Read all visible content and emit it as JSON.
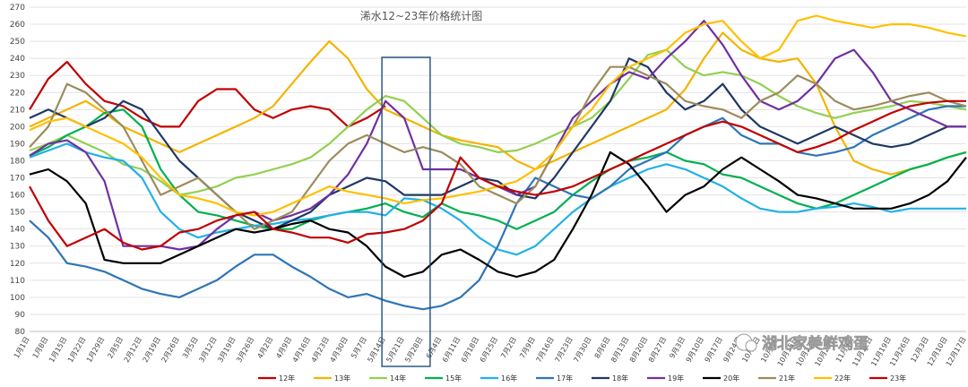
{
  "chart_data": {
    "type": "line",
    "title": "浠水12~23年价格统计图",
    "ylim": [
      80,
      270
    ],
    "ystep": 10,
    "grid": true,
    "legend_position": "bottom",
    "highlight_range": [
      "5月14日",
      "5月28日"
    ],
    "categories": [
      "1月1日",
      "1月8日",
      "1月15日",
      "1月22日",
      "1月29日",
      "2月5日",
      "2月12日",
      "2月19日",
      "2月26日",
      "3月5日",
      "3月12日",
      "3月19日",
      "3月26日",
      "4月2日",
      "4月9日",
      "4月16日",
      "4月23日",
      "4月30日",
      "5月7日",
      "5月14日",
      "5月21日",
      "5月28日",
      "6月4日",
      "6月11日",
      "6月18日",
      "6月25日",
      "7月2日",
      "7月9日",
      "7月16日",
      "7月23日",
      "7月30日",
      "8月6日",
      "8月13日",
      "8月20日",
      "8月27日",
      "9月3日",
      "9月10日",
      "9月17日",
      "9月24日",
      "10月1日",
      "10月8日",
      "10月15日",
      "10月22日",
      "10月29日",
      "11月5日",
      "11月12日",
      "11月19日",
      "11月26日",
      "12月3日",
      "12月10日",
      "12月17日"
    ],
    "series": [
      {
        "name": "12年",
        "color": "#c00000",
        "values": [
          210,
          228,
          238,
          225,
          215,
          212,
          205,
          200,
          200,
          215,
          222,
          222,
          210,
          205,
          210,
          212,
          210,
          200,
          205,
          212,
          null,
          null,
          null,
          null,
          null,
          null,
          null,
          null,
          null,
          null,
          null,
          null,
          null,
          null,
          null,
          null,
          null,
          null,
          null,
          null,
          null,
          null,
          null,
          null,
          null,
          null,
          null,
          null,
          null,
          null,
          null
        ]
      },
      {
        "name": "13年",
        "color": "#f4b400",
        "values": [
          200,
          205,
          210,
          215,
          208,
          200,
          195,
          190,
          185,
          190,
          195,
          200,
          205,
          212,
          225,
          238,
          250,
          240,
          222,
          210,
          205,
          200,
          195,
          192,
          190,
          188,
          180,
          175,
          180,
          185,
          190,
          195,
          200,
          205,
          210,
          222,
          240,
          255,
          245,
          240,
          238,
          240,
          225,
          200,
          180,
          175,
          172,
          175,
          178,
          182,
          185
        ]
      },
      {
        "name": "14年",
        "color": "#92d050",
        "values": [
          186,
          190,
          195,
          190,
          185,
          178,
          175,
          168,
          160,
          162,
          165,
          170,
          172,
          175,
          178,
          182,
          190,
          200,
          210,
          218,
          215,
          205,
          195,
          190,
          188,
          185,
          186,
          190,
          195,
          200,
          205,
          215,
          228,
          242,
          245,
          235,
          230,
          232,
          230,
          225,
          218,
          212,
          208,
          205,
          208,
          210,
          212,
          215,
          214,
          212,
          210
        ]
      },
      {
        "name": "15年",
        "color": "#00b050",
        "values": [
          183,
          188,
          195,
          200,
          208,
          210,
          200,
          175,
          160,
          150,
          148,
          145,
          142,
          140,
          140,
          145,
          148,
          150,
          152,
          155,
          150,
          147,
          155,
          150,
          148,
          145,
          140,
          145,
          150,
          160,
          168,
          175,
          180,
          182,
          185,
          180,
          178,
          172,
          170,
          165,
          160,
          155,
          152,
          155,
          160,
          165,
          170,
          175,
          178,
          182,
          185
        ]
      },
      {
        "name": "16年",
        "color": "#21b1e6",
        "values": [
          182,
          186,
          190,
          185,
          182,
          180,
          170,
          150,
          140,
          135,
          138,
          140,
          142,
          143,
          145,
          146,
          148,
          150,
          150,
          148,
          158,
          157,
          152,
          145,
          135,
          128,
          125,
          130,
          140,
          150,
          158,
          165,
          170,
          175,
          178,
          175,
          170,
          165,
          158,
          152,
          150,
          150,
          152,
          153,
          155,
          153,
          150,
          152,
          152,
          152,
          152
        ]
      },
      {
        "name": "17年",
        "color": "#2e75b6",
        "values": [
          145,
          135,
          120,
          118,
          115,
          110,
          105,
          102,
          100,
          105,
          110,
          118,
          125,
          125,
          118,
          112,
          105,
          100,
          102,
          98,
          95,
          93,
          95,
          100,
          110,
          130,
          155,
          170,
          165,
          160,
          158,
          165,
          175,
          180,
          185,
          195,
          200,
          205,
          195,
          190,
          190,
          185,
          183,
          185,
          188,
          195,
          200,
          205,
          210,
          212,
          212
        ]
      },
      {
        "name": "18年",
        "color": "#1f3864",
        "values": [
          205,
          210,
          205,
          200,
          205,
          215,
          210,
          195,
          180,
          170,
          160,
          150,
          145,
          140,
          145,
          150,
          160,
          165,
          170,
          168,
          160,
          160,
          160,
          165,
          170,
          168,
          160,
          158,
          170,
          185,
          200,
          215,
          240,
          235,
          220,
          210,
          215,
          225,
          210,
          200,
          195,
          190,
          195,
          200,
          195,
          190,
          188,
          190,
          195,
          200,
          200
        ]
      },
      {
        "name": "19年",
        "color": "#7030a0",
        "values": [
          183,
          190,
          192,
          185,
          168,
          130,
          130,
          130,
          128,
          130,
          140,
          148,
          150,
          145,
          148,
          152,
          160,
          172,
          190,
          215,
          205,
          175,
          175,
          175,
          170,
          165,
          160,
          165,
          185,
          205,
          215,
          225,
          232,
          228,
          240,
          250,
          262,
          248,
          230,
          215,
          210,
          215,
          225,
          240,
          245,
          232,
          215,
          210,
          205,
          200,
          200
        ]
      },
      {
        "name": "20年",
        "color": "#000000",
        "values": [
          172,
          175,
          168,
          155,
          122,
          120,
          120,
          120,
          125,
          130,
          135,
          140,
          138,
          140,
          143,
          145,
          140,
          138,
          130,
          118,
          112,
          115,
          125,
          128,
          122,
          115,
          112,
          115,
          122,
          140,
          160,
          185,
          178,
          165,
          150,
          160,
          165,
          175,
          182,
          175,
          168,
          160,
          158,
          155,
          152,
          152,
          152,
          155,
          160,
          168,
          182
        ]
      },
      {
        "name": "21年",
        "color": "#9c8c5c",
        "values": [
          188,
          200,
          225,
          220,
          210,
          200,
          180,
          160,
          165,
          170,
          160,
          150,
          140,
          145,
          150,
          165,
          180,
          190,
          195,
          190,
          185,
          188,
          185,
          178,
          165,
          160,
          155,
          165,
          185,
          200,
          220,
          235,
          235,
          230,
          225,
          215,
          212,
          210,
          205,
          215,
          220,
          230,
          225,
          215,
          210,
          212,
          215,
          218,
          220,
          215,
          212
        ]
      },
      {
        "name": "22年",
        "color": "#ffc000",
        "values": [
          198,
          203,
          205,
          200,
          195,
          190,
          182,
          170,
          160,
          158,
          155,
          150,
          148,
          150,
          155,
          160,
          165,
          162,
          160,
          158,
          155,
          157,
          158,
          160,
          162,
          165,
          168,
          175,
          185,
          200,
          210,
          225,
          235,
          240,
          245,
          255,
          260,
          262,
          250,
          240,
          245,
          262,
          265,
          262,
          260,
          258,
          260,
          260,
          258,
          255,
          253
        ]
      },
      {
        "name": "23年",
        "color": "#c00000",
        "values": [
          165,
          145,
          130,
          135,
          140,
          132,
          128,
          130,
          138,
          140,
          145,
          148,
          150,
          140,
          138,
          135,
          135,
          132,
          137,
          138,
          140,
          145,
          155,
          182,
          170,
          165,
          162,
          160,
          162,
          165,
          170,
          175,
          180,
          185,
          190,
          195,
          200,
          203,
          200,
          195,
          190,
          185,
          188,
          192,
          198,
          203,
          208,
          212,
          214,
          215,
          215
        ]
      }
    ]
  },
  "watermark": "湖北家美鲜鸡蛋"
}
